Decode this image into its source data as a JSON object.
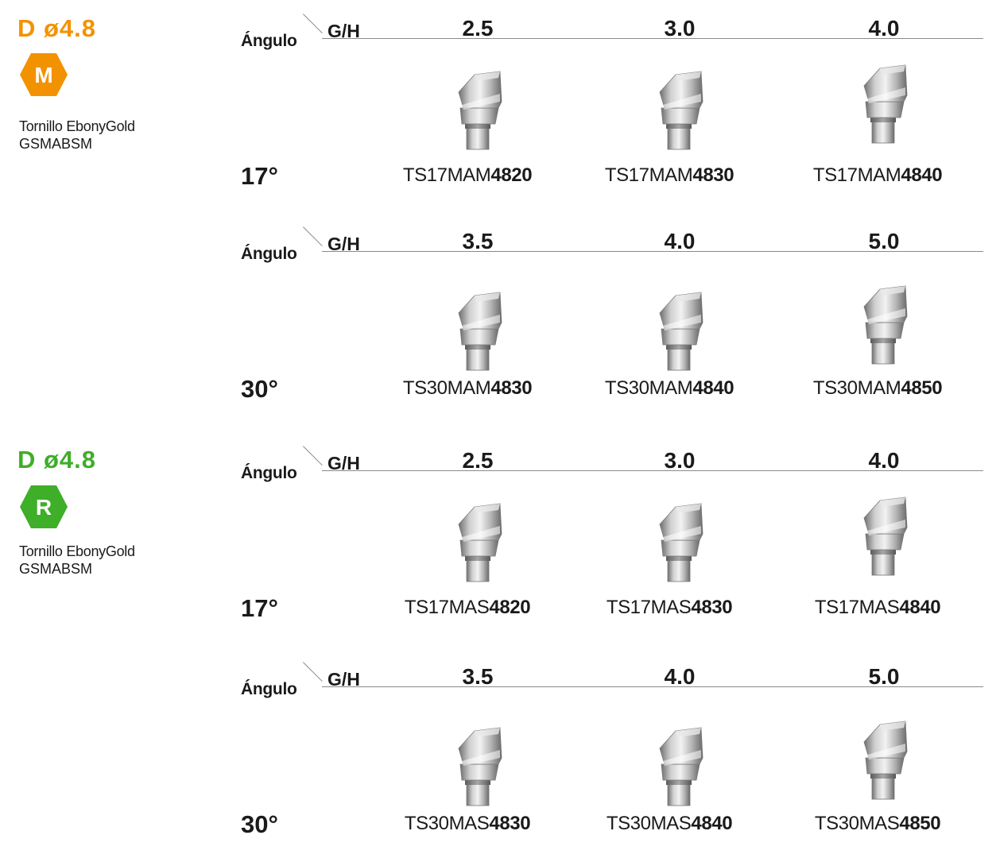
{
  "colors": {
    "orange": "#f39200",
    "green": "#3fae29"
  },
  "groups": [
    {
      "title": "D ø4.8",
      "badge": "M",
      "badge_color": "#f39200",
      "screw_label": "Tornillo EbonyGold",
      "screw_code": "GSMABSM",
      "tables": [
        {
          "angle_header": "Ángulo",
          "gh_label": "G/H",
          "degrees": "17°",
          "gh_values": [
            "2.5",
            "3.0",
            "4.0"
          ],
          "codes": [
            {
              "prefix": "TS17MAM",
              "suffix": "4820"
            },
            {
              "prefix": "TS17MAM",
              "suffix": "4830"
            },
            {
              "prefix": "TS17MAM",
              "suffix": "4840"
            }
          ]
        },
        {
          "angle_header": "Ángulo",
          "gh_label": "G/H",
          "degrees": "30°",
          "gh_values": [
            "3.5",
            "4.0",
            "5.0"
          ],
          "codes": [
            {
              "prefix": "TS30MAM",
              "suffix": "4830"
            },
            {
              "prefix": "TS30MAM",
              "suffix": "4840"
            },
            {
              "prefix": "TS30MAM",
              "suffix": "4850"
            }
          ]
        }
      ]
    },
    {
      "title": "D ø4.8",
      "badge": "R",
      "badge_color": "#3fae29",
      "screw_label": "Tornillo EbonyGold",
      "screw_code": "GSMABSM",
      "tables": [
        {
          "angle_header": "Ángulo",
          "gh_label": "G/H",
          "degrees": "17°",
          "gh_values": [
            "2.5",
            "3.0",
            "4.0"
          ],
          "codes": [
            {
              "prefix": "TS17MAS",
              "suffix": "4820"
            },
            {
              "prefix": "TS17MAS",
              "suffix": "4830"
            },
            {
              "prefix": "TS17MAS",
              "suffix": "4840"
            }
          ]
        },
        {
          "angle_header": "Ángulo",
          "gh_label": "G/H",
          "degrees": "30°",
          "gh_values": [
            "3.5",
            "4.0",
            "5.0"
          ],
          "codes": [
            {
              "prefix": "TS30MAS",
              "suffix": "4830"
            },
            {
              "prefix": "TS30MAS",
              "suffix": "4840"
            },
            {
              "prefix": "TS30MAS",
              "suffix": "4850"
            }
          ]
        }
      ]
    }
  ]
}
